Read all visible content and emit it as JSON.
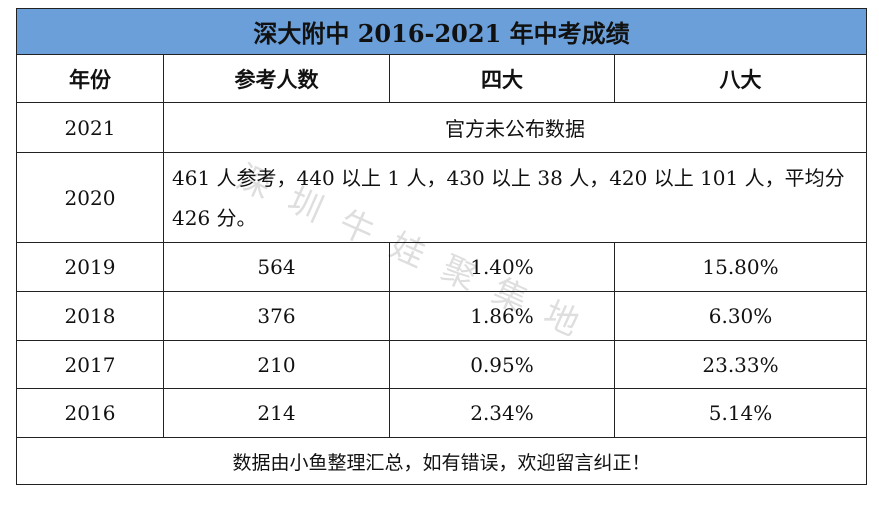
{
  "title": "深大附中 2016-2021 年中考成绩",
  "table": {
    "header": [
      "年份",
      "参考人数",
      "四大",
      "八大"
    ],
    "rows": [
      [
        "2021",
        "官方未公布数据"
      ],
      [
        "2020",
        "461 人参考，440 以上 1 人，430 以上 38 人，420 以上 101 人，平均分 426 分。"
      ],
      [
        "2019",
        "564",
        "1.40%",
        "15.80%"
      ],
      [
        "2018",
        "376",
        "1.86%",
        "6.30%"
      ],
      [
        "2017",
        "210",
        "0.95%",
        "23.33%"
      ],
      [
        "2016",
        "214",
        "2.34%",
        "5.14%"
      ]
    ]
  },
  "footer": "数据由小鱼整理汇总，如有错误，欢迎留言纠正！",
  "watermark": "深圳牛娃聚集地"
}
